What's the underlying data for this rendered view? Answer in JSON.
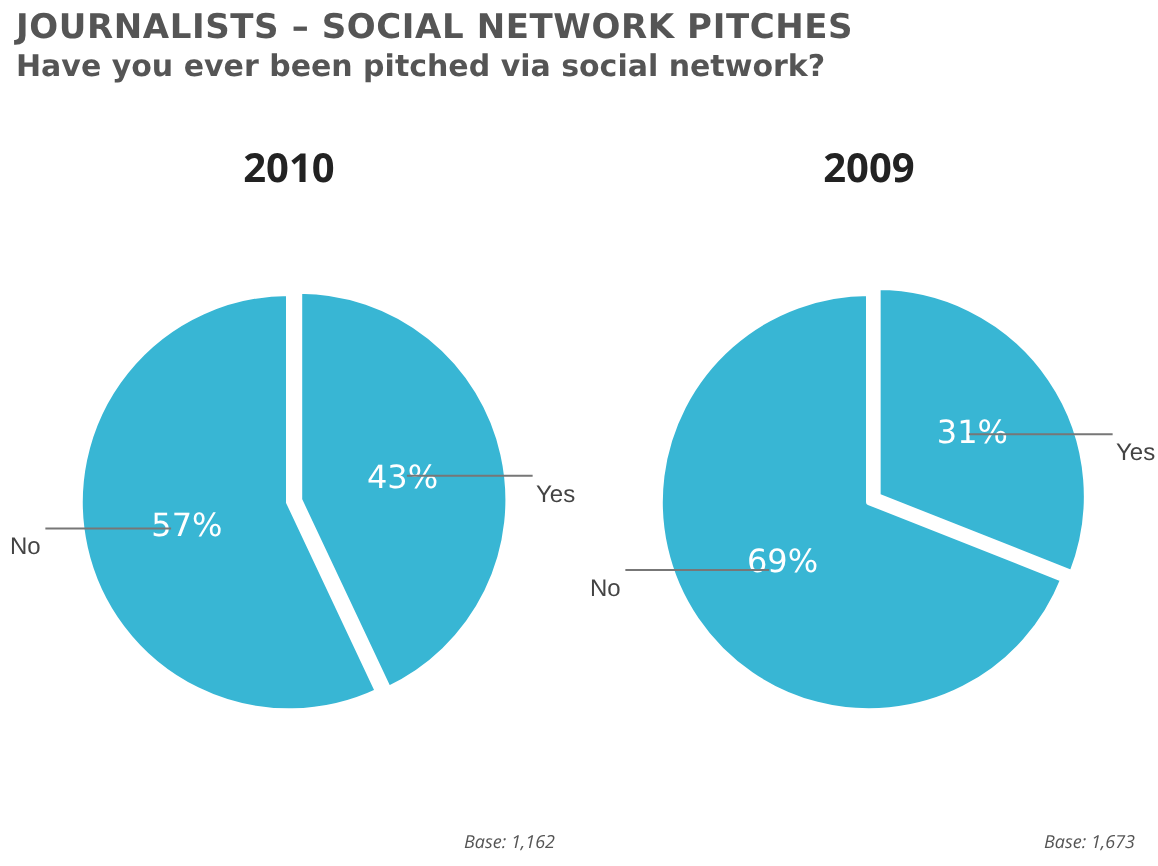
{
  "chart_data": [
    {
      "type": "other",
      "title": "JOURNALISTS – SOCIAL NETWORK PITCHES",
      "subtitle": "Have you ever been pitched via social network?"
    },
    {
      "type": "pie",
      "title": "2010",
      "categories": [
        "Yes",
        "No"
      ],
      "values": [
        43,
        57
      ],
      "colors": [
        "#38b6d4",
        "#38b6d4"
      ],
      "value_labels": [
        "43%",
        "57%"
      ],
      "annotations": [
        "Base: 1,162"
      ]
    },
    {
      "type": "pie",
      "title": "2009",
      "categories": [
        "Yes",
        "No"
      ],
      "values": [
        31,
        69
      ],
      "colors": [
        "#38b6d4",
        "#38b6d4"
      ],
      "value_labels": [
        "31%",
        "69%"
      ],
      "annotations": [
        "Base: 1,673"
      ]
    }
  ]
}
